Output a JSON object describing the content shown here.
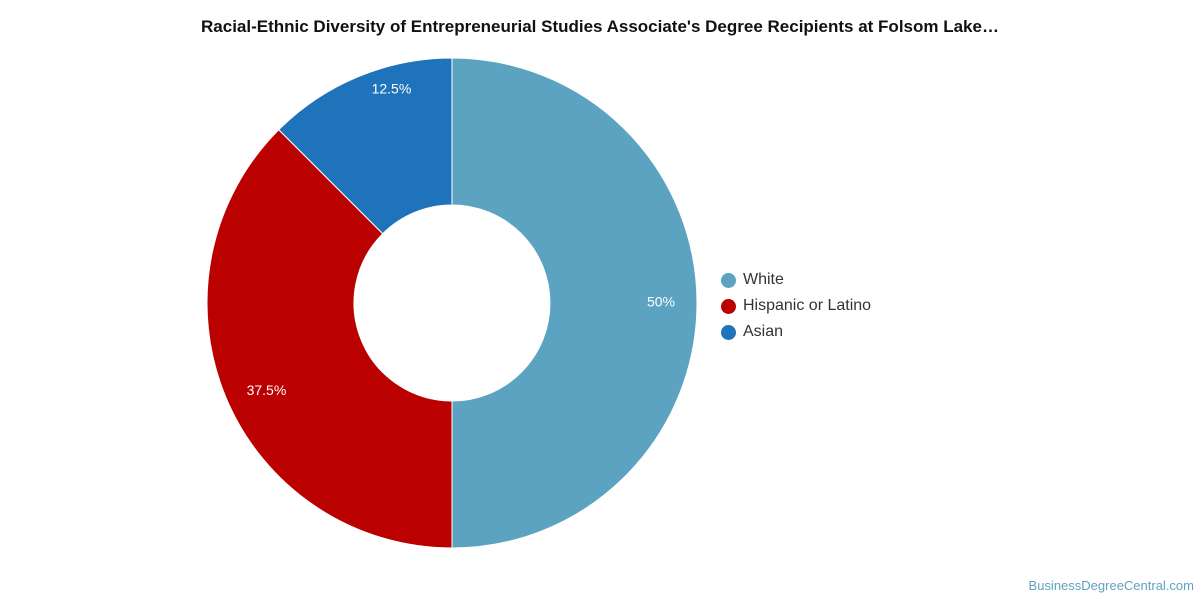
{
  "chart_data": {
    "type": "pie",
    "title": "Racial-Ethnic Diversity of Entrepreneurial Studies Associate's Degree Recipients at Folsom Lake…",
    "categories": [
      "White",
      "Hispanic or Latino",
      "Asian"
    ],
    "values": [
      50,
      37.5,
      12.5
    ],
    "value_labels": [
      "50%",
      "37.5%",
      "12.5%"
    ],
    "colors": [
      "#5ba3c0",
      "#bb0000",
      "#1f73bb"
    ],
    "donut": true,
    "legend_position": "right"
  },
  "watermark": "BusinessDegreeCentral.com"
}
